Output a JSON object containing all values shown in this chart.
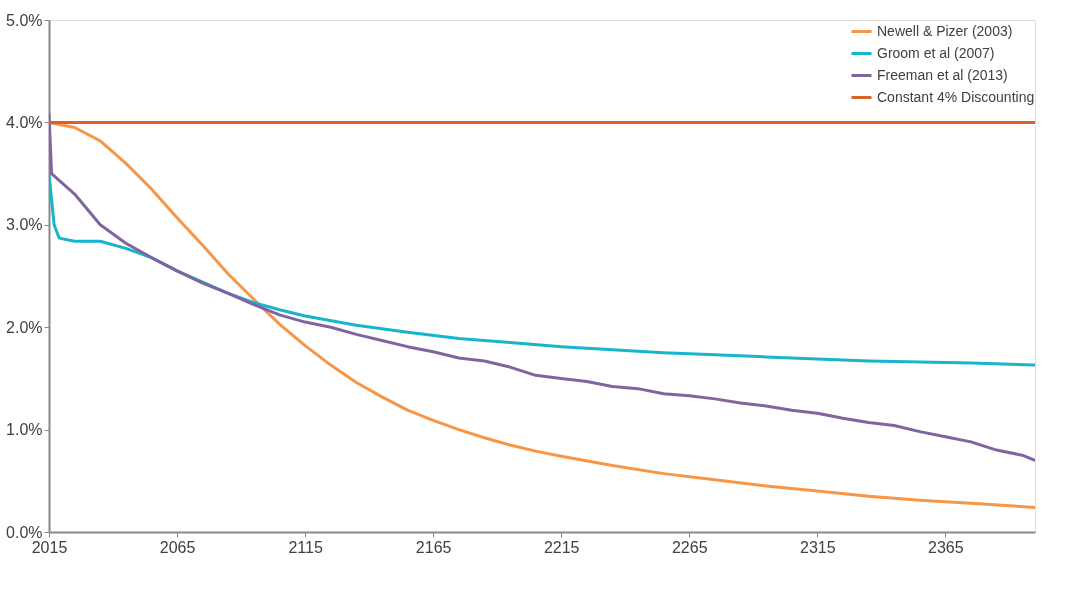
{
  "chart_data": {
    "type": "line",
    "xlim": [
      2015,
      2400
    ],
    "xticks": [
      2015,
      2065,
      2115,
      2165,
      2215,
      2265,
      2315,
      2365
    ],
    "ylim": [
      0,
      5
    ],
    "yticks": [
      {
        "value": 0,
        "label": "0.0%"
      },
      {
        "value": 1,
        "label": "1.0%"
      },
      {
        "value": 2,
        "label": "2.0%"
      },
      {
        "value": 3,
        "label": "3.0%"
      },
      {
        "value": 4,
        "label": "4.0%"
      },
      {
        "value": 5,
        "label": "5.0%"
      }
    ],
    "grid": false,
    "legend": "top right",
    "marker": "none",
    "line_style": "solid",
    "series": [
      {
        "name": "Newell & Pizer (2003)",
        "color": "#f79646",
        "x": [
          2015,
          2025,
          2035,
          2045,
          2055,
          2065,
          2075,
          2085,
          2095,
          2105,
          2115,
          2125,
          2135,
          2145,
          2155,
          2165,
          2175,
          2185,
          2195,
          2205,
          2215,
          2235,
          2255,
          2275,
          2295,
          2315,
          2335,
          2355,
          2375,
          2400
        ],
        "values": [
          4.0,
          3.95,
          3.82,
          3.6,
          3.35,
          3.07,
          2.8,
          2.52,
          2.27,
          2.03,
          1.82,
          1.63,
          1.46,
          1.32,
          1.19,
          1.09,
          1.0,
          0.92,
          0.85,
          0.79,
          0.74,
          0.65,
          0.57,
          0.51,
          0.45,
          0.4,
          0.35,
          0.31,
          0.28,
          0.24
        ]
      },
      {
        "name": "Groom et al (2007)",
        "color": "#17b5cc",
        "x": [
          2015,
          2017,
          2019,
          2025,
          2035,
          2045,
          2055,
          2065,
          2075,
          2085,
          2095,
          2105,
          2115,
          2135,
          2155,
          2175,
          2195,
          2215,
          2235,
          2255,
          2275,
          2295,
          2315,
          2335,
          2355,
          2375,
          2400
        ],
        "values": [
          3.5,
          3.0,
          2.87,
          2.84,
          2.84,
          2.77,
          2.68,
          2.55,
          2.44,
          2.33,
          2.24,
          2.17,
          2.11,
          2.02,
          1.95,
          1.89,
          1.85,
          1.81,
          1.78,
          1.75,
          1.73,
          1.71,
          1.69,
          1.67,
          1.66,
          1.65,
          1.63
        ]
      },
      {
        "name": "Freeman et al (2013)",
        "color": "#8064a2",
        "x": [
          2015,
          2016,
          2025,
          2035,
          2045,
          2055,
          2065,
          2075,
          2085,
          2095,
          2105,
          2115,
          2125,
          2135,
          2145,
          2155,
          2165,
          2175,
          2185,
          2195,
          2205,
          2215,
          2225,
          2235,
          2245,
          2255,
          2265,
          2275,
          2285,
          2295,
          2305,
          2315,
          2325,
          2335,
          2345,
          2355,
          2365,
          2375,
          2385,
          2395,
          2400
        ],
        "values": [
          4.08,
          3.5,
          3.3,
          3.0,
          2.82,
          2.68,
          2.55,
          2.43,
          2.33,
          2.22,
          2.12,
          2.05,
          2.0,
          1.93,
          1.87,
          1.81,
          1.76,
          1.7,
          1.67,
          1.61,
          1.53,
          1.5,
          1.47,
          1.42,
          1.4,
          1.35,
          1.33,
          1.3,
          1.26,
          1.23,
          1.19,
          1.16,
          1.11,
          1.07,
          1.04,
          0.98,
          0.93,
          0.88,
          0.8,
          0.75,
          0.7
        ]
      },
      {
        "name": "Constant 4% Discounting",
        "color": "#d9622b",
        "x": [
          2015,
          2400
        ],
        "values": [
          4.0,
          4.0
        ]
      }
    ]
  }
}
